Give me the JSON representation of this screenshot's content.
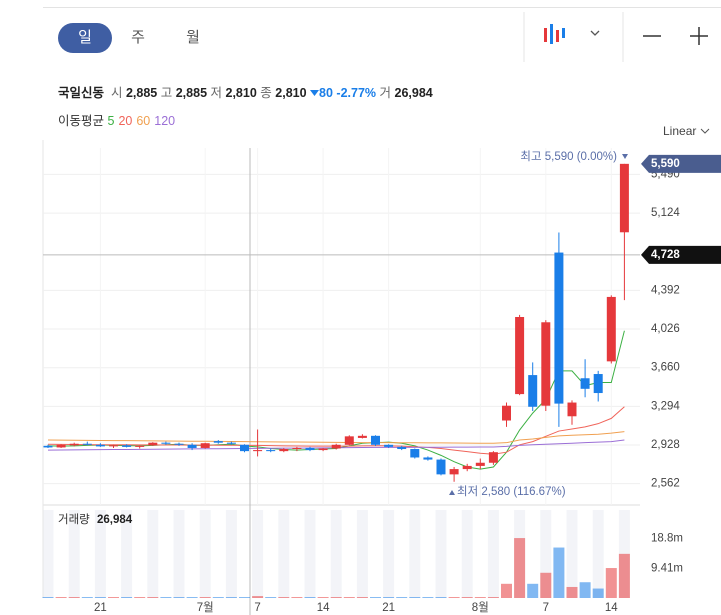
{
  "ui": {
    "tabs": [
      "일",
      "주",
      "월"
    ],
    "scale_mode": "Linear",
    "quote": {
      "name": "국일신동",
      "open_label": "시",
      "open": "2,885",
      "high_label": "고",
      "high": "2,885",
      "low_label": "저",
      "low": "2,810",
      "close_label": "종",
      "close": "2,810",
      "change": "80",
      "change_pct": "-2.77%",
      "volume_label": "거",
      "volume": "26,984"
    },
    "ma_label": "이동평균",
    "volume_title": "거래량",
    "volume_now": "26,984"
  },
  "chart_data": {
    "type": "candlestick",
    "categories": [
      null,
      null,
      null,
      null,
      "21",
      null,
      null,
      null,
      null,
      null,
      null,
      null,
      "7월",
      null,
      null,
      null,
      "7",
      null,
      null,
      null,
      null,
      "14",
      null,
      null,
      null,
      null,
      "21",
      null,
      null,
      null,
      null,
      null,
      null,
      "8월",
      null,
      null,
      null,
      null,
      "7",
      null,
      null,
      null,
      null,
      "14",
      null
    ],
    "open": [
      2920,
      2905,
      2925,
      2940,
      2930,
      2915,
      2925,
      2910,
      2925,
      2950,
      2940,
      2930,
      2900,
      2965,
      2950,
      2930,
      2870,
      2880,
      2870,
      2890,
      2900,
      2880,
      2895,
      2930,
      2995,
      3015,
      2930,
      2910,
      2890,
      2810,
      2790,
      2650,
      2700,
      2730,
      2760,
      3160,
      3410,
      3590,
      3300,
      4750,
      3200,
      3560,
      3600,
      3720,
      4942
    ],
    "high": [
      2930,
      2935,
      2950,
      2960,
      2945,
      2930,
      2935,
      2925,
      2955,
      2960,
      2950,
      2945,
      2950,
      2975,
      2960,
      2935,
      3075,
      2895,
      2900,
      2910,
      2910,
      2900,
      2940,
      3020,
      3030,
      3020,
      2935,
      2920,
      2895,
      2820,
      2800,
      2720,
      2750,
      2800,
      2870,
      3330,
      4160,
      3710,
      4110,
      4940,
      3350,
      3740,
      3630,
      4345,
      5590
    ],
    "low": [
      2900,
      2900,
      2915,
      2925,
      2910,
      2900,
      2905,
      2895,
      2920,
      2930,
      2920,
      2880,
      2895,
      2940,
      2930,
      2860,
      2820,
      2860,
      2860,
      2870,
      2870,
      2870,
      2885,
      2925,
      2990,
      2920,
      2900,
      2880,
      2800,
      2780,
      2640,
      2580,
      2680,
      2700,
      2740,
      3100,
      3400,
      3250,
      3250,
      3100,
      3120,
      3380,
      3340,
      3700,
      4300
    ],
    "close": [
      2905,
      2930,
      2940,
      2930,
      2915,
      2925,
      2910,
      2920,
      2950,
      2940,
      2930,
      2900,
      2945,
      2950,
      2940,
      2870,
      2880,
      2870,
      2890,
      2900,
      2880,
      2895,
      2930,
      3010,
      3015,
      2930,
      2910,
      2890,
      2810,
      2790,
      2650,
      2700,
      2730,
      2760,
      2860,
      3300,
      4140,
      3290,
      4090,
      3320,
      3330,
      3460,
      3420,
      4330,
      5590
    ],
    "up_color": "#e5383b",
    "down_color": "#1a7ee8",
    "series": [
      {
        "name": "5",
        "color": "#3cb043",
        "values": [
          2920,
          2918,
          2920,
          2925,
          2928,
          2925,
          2922,
          2920,
          2925,
          2930,
          2935,
          2925,
          2925,
          2930,
          2935,
          2920,
          2910,
          2895,
          2885,
          2880,
          2885,
          2890,
          2895,
          2920,
          2945,
          2950,
          2955,
          2945,
          2920,
          2880,
          2830,
          2770,
          2720,
          2700,
          2720,
          2860,
          3070,
          3230,
          3360,
          3630,
          3630,
          3490,
          3520,
          3520,
          4010
        ]
      },
      {
        "name": "20",
        "color": "#f0645a",
        "values": [
          2935,
          2934,
          2933,
          2932,
          2931,
          2930,
          2930,
          2929,
          2929,
          2928,
          2928,
          2927,
          2927,
          2926,
          2926,
          2925,
          2924,
          2922,
          2920,
          2919,
          2918,
          2917,
          2917,
          2918,
          2920,
          2921,
          2920,
          2918,
          2912,
          2905,
          2895,
          2880,
          2865,
          2850,
          2840,
          2860,
          2930,
          2960,
          3010,
          3060,
          3080,
          3100,
          3130,
          3180,
          3290
        ]
      },
      {
        "name": "60",
        "color": "#f0a050",
        "values": [
          2975,
          2974,
          2973,
          2972,
          2971,
          2970,
          2969,
          2968,
          2967,
          2966,
          2965,
          2964,
          2963,
          2962,
          2961,
          2960,
          2959,
          2958,
          2957,
          2956,
          2955,
          2954,
          2953,
          2952,
          2951,
          2950,
          2950,
          2949,
          2949,
          2948,
          2948,
          2947,
          2946,
          2945,
          2945,
          2950,
          2975,
          2985,
          3000,
          3015,
          3020,
          3025,
          3030,
          3040,
          3055
        ]
      },
      {
        "name": "120",
        "color": "#9b6fd6",
        "values": [
          2880,
          2881,
          2882,
          2883,
          2884,
          2885,
          2886,
          2887,
          2888,
          2889,
          2890,
          2891,
          2892,
          2893,
          2894,
          2895,
          2896,
          2897,
          2898,
          2899,
          2900,
          2901,
          2902,
          2903,
          2904,
          2905,
          2905,
          2906,
          2906,
          2907,
          2907,
          2908,
          2908,
          2909,
          2909,
          2915,
          2925,
          2930,
          2935,
          2940,
          2945,
          2950,
          2955,
          2960,
          2975
        ]
      }
    ],
    "ylim": [
      2360,
      5740
    ],
    "yticks": [
      {
        "value": 2562,
        "label": "2,562"
      },
      {
        "value": 2928,
        "label": "2,928"
      },
      {
        "value": 3294,
        "label": "3,294"
      },
      {
        "value": 3660,
        "label": "3,660"
      },
      {
        "value": 4026,
        "label": "4,026"
      },
      {
        "value": 4392,
        "label": "4,392"
      },
      {
        "value": 5124,
        "label": "5,124"
      },
      {
        "value": 5490,
        "label": "5,490"
      }
    ],
    "last_price": {
      "value": 5590,
      "label": "5,590"
    },
    "crosshair_price": {
      "value": 4728,
      "label": "4,728"
    },
    "high_annotation": "최고 5,590 (0.00%)",
    "low_annotation": "최저 2,580 (116.67%)",
    "volume": [
      0.3,
      0.3,
      0.3,
      0.3,
      0.3,
      0.3,
      0.3,
      0.3,
      0.3,
      0.3,
      0.3,
      0.3,
      0.3,
      0.3,
      0.3,
      0.3,
      0.6,
      0.3,
      0.3,
      0.3,
      0.3,
      0.3,
      0.3,
      0.3,
      0.3,
      0.3,
      0.3,
      0.3,
      0.3,
      0.3,
      0.3,
      0.3,
      0.3,
      0.3,
      0.3,
      4.5,
      19.0,
      4.5,
      8.0,
      16.0,
      3.5,
      5.0,
      3.0,
      9.5,
      14.0
    ],
    "volume_ylim": [
      0,
      27.9
    ],
    "volume_yticks": [
      {
        "value": 9.41,
        "label": "9.41m"
      },
      {
        "value": 18.8,
        "label": "18.8m"
      }
    ],
    "grid": true
  }
}
